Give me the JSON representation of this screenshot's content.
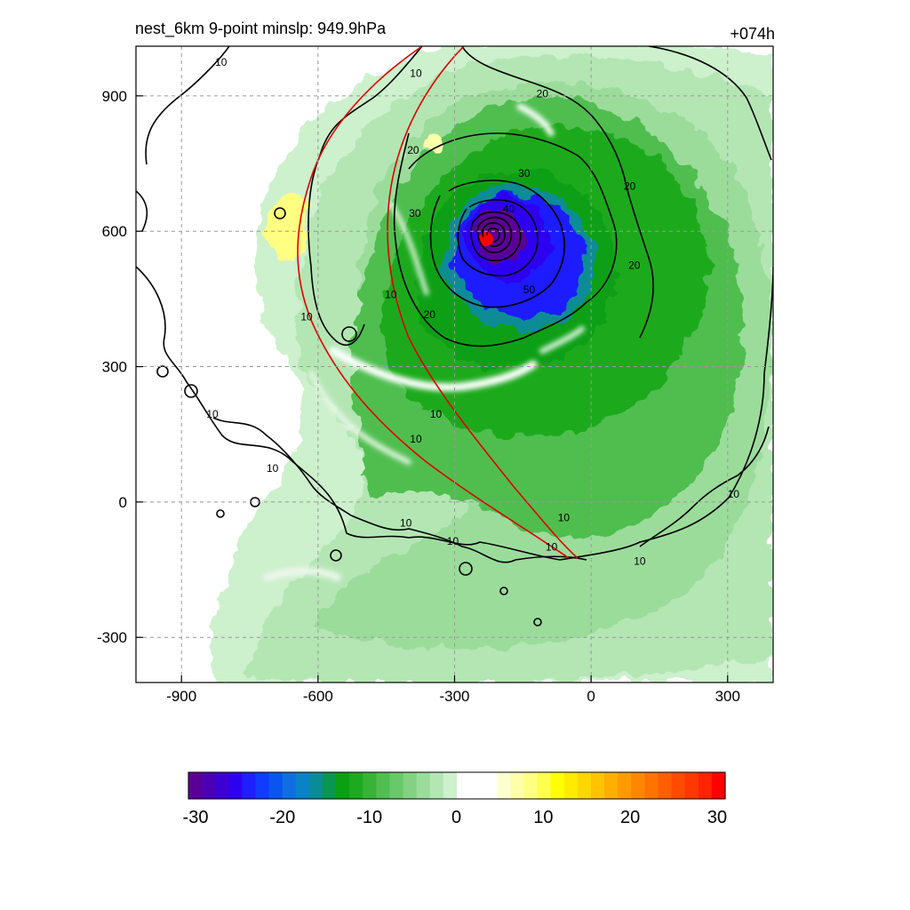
{
  "title_left": "nest_6km  9-point minslp: 949.9hPa",
  "title_right": "+074h",
  "chart_data": {
    "type": "heatmap",
    "title": "nest_6km  9-point minslp: 949.9hPa",
    "valid_label": "+074h",
    "xlim": [
      -1000,
      400
    ],
    "ylim": [
      -400,
      1010
    ],
    "x_ticks": [
      -900,
      -600,
      -300,
      0,
      300
    ],
    "y_ticks": [
      -300,
      0,
      300,
      600,
      900
    ],
    "grid": true,
    "storm_center": [
      -227,
      580
    ],
    "contour_labels": [
      {
        "text": "10",
        "x": -813,
        "y": 975
      },
      {
        "text": "10",
        "x": -385,
        "y": 950
      },
      {
        "text": "20",
        "x": -107,
        "y": 905
      },
      {
        "text": "20",
        "x": -391,
        "y": 780
      },
      {
        "text": "20",
        "x": 85,
        "y": 700
      },
      {
        "text": "30",
        "x": -147,
        "y": 728
      },
      {
        "text": "40",
        "x": -181,
        "y": 650
      },
      {
        "text": "30",
        "x": -387,
        "y": 640
      },
      {
        "text": "20",
        "x": 95,
        "y": 525
      },
      {
        "text": "50",
        "x": -136,
        "y": 470
      },
      {
        "text": "20",
        "x": -355,
        "y": 415
      },
      {
        "text": "10",
        "x": -440,
        "y": 460
      },
      {
        "text": "10",
        "x": -625,
        "y": 410
      },
      {
        "text": "10",
        "x": -341,
        "y": 195
      },
      {
        "text": "10",
        "x": -385,
        "y": 140
      },
      {
        "text": "10",
        "x": -832,
        "y": 195
      },
      {
        "text": "10",
        "x": -700,
        "y": 75
      },
      {
        "text": "10",
        "x": -407,
        "y": -47
      },
      {
        "text": "10",
        "x": -304,
        "y": -87
      },
      {
        "text": "10",
        "x": -60,
        "y": -35
      },
      {
        "text": "10",
        "x": -87,
        "y": -100
      },
      {
        "text": "10",
        "x": 107,
        "y": -131
      },
      {
        "text": "10",
        "x": 313,
        "y": 17
      }
    ],
    "colorbar": {
      "min": -30,
      "max": 30,
      "tick_labels": [
        "-30",
        "-20",
        "-10",
        "0",
        "10",
        "20",
        "30"
      ],
      "colors": [
        "#5a0096",
        "#4b00b4",
        "#3c00d2",
        "#2d00f0",
        "#1e1eff",
        "#0f3cff",
        "#0a55f0",
        "#0f6ee1",
        "#0a82c8",
        "#0a8c96",
        "#0a9650",
        "#0aa014",
        "#1eaa1e",
        "#37b437",
        "#50be50",
        "#69c869",
        "#82d282",
        "#9bdc9b",
        "#b4e6b4",
        "#cdf0cd",
        "#ffffff",
        "#ffffff",
        "#ffffff",
        "#ffffd2",
        "#ffffaa",
        "#ffff82",
        "#ffff50",
        "#ffff00",
        "#ffeb00",
        "#ffd700",
        "#ffc300",
        "#ffaf00",
        "#ff9b00",
        "#ff8700",
        "#ff7300",
        "#ff5f00",
        "#ff4b00",
        "#ff3700",
        "#ff2300",
        "#ff0000"
      ]
    }
  }
}
